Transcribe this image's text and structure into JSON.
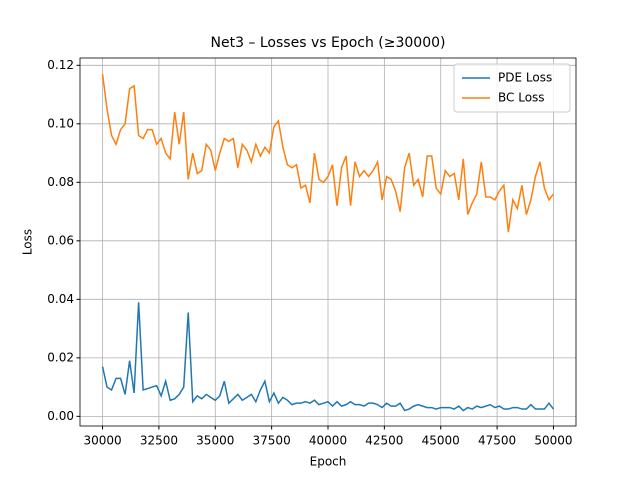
{
  "chart_data": {
    "type": "line",
    "title": "Net3 – Losses vs Epoch (≥30000)",
    "xlabel": "Epoch",
    "ylabel": "Loss",
    "x": [
      30000,
      30200,
      30400,
      30600,
      30800,
      31000,
      31200,
      31400,
      31600,
      31800,
      32000,
      32200,
      32400,
      32600,
      32800,
      33000,
      33200,
      33400,
      33600,
      33800,
      34000,
      34200,
      34400,
      34600,
      34800,
      35000,
      35200,
      35400,
      35600,
      35800,
      36000,
      36200,
      36400,
      36600,
      36800,
      37000,
      37200,
      37400,
      37600,
      37800,
      38000,
      38200,
      38400,
      38600,
      38800,
      39000,
      39200,
      39400,
      39600,
      39800,
      40000,
      40200,
      40400,
      40600,
      40800,
      41000,
      41200,
      41400,
      41600,
      41800,
      42000,
      42200,
      42400,
      42600,
      42800,
      43000,
      43200,
      43400,
      43600,
      43800,
      44000,
      44200,
      44400,
      44600,
      44800,
      45000,
      45200,
      45400,
      45600,
      45800,
      46000,
      46200,
      46400,
      46600,
      46800,
      47000,
      47200,
      47400,
      47600,
      47800,
      48000,
      48200,
      48400,
      48600,
      48800,
      49000,
      49200,
      49400,
      49600,
      49800,
      50000
    ],
    "series": [
      {
        "name": "PDE Loss",
        "color": "#1f77b4",
        "values": [
          0.017,
          0.01,
          0.009,
          0.013,
          0.013,
          0.0075,
          0.019,
          0.008,
          0.039,
          0.009,
          0.0095,
          0.01,
          0.0105,
          0.007,
          0.012,
          0.0055,
          0.006,
          0.0075,
          0.01,
          0.0355,
          0.005,
          0.007,
          0.006,
          0.0075,
          0.0065,
          0.0055,
          0.007,
          0.012,
          0.0045,
          0.006,
          0.0075,
          0.0055,
          0.0065,
          0.0075,
          0.005,
          0.009,
          0.012,
          0.005,
          0.008,
          0.0045,
          0.0065,
          0.0055,
          0.004,
          0.0045,
          0.0045,
          0.005,
          0.0045,
          0.0055,
          0.004,
          0.0045,
          0.005,
          0.0035,
          0.005,
          0.0035,
          0.004,
          0.005,
          0.004,
          0.004,
          0.0035,
          0.0045,
          0.0045,
          0.004,
          0.003,
          0.0045,
          0.0035,
          0.0035,
          0.0045,
          0.002,
          0.0025,
          0.0035,
          0.004,
          0.0035,
          0.003,
          0.003,
          0.0025,
          0.003,
          0.003,
          0.003,
          0.0025,
          0.0035,
          0.002,
          0.003,
          0.0025,
          0.0035,
          0.003,
          0.0035,
          0.004,
          0.003,
          0.0035,
          0.0025,
          0.0025,
          0.003,
          0.003,
          0.0025,
          0.0025,
          0.004,
          0.0025,
          0.0025,
          0.0025,
          0.0045,
          0.0025
        ]
      },
      {
        "name": "BC Loss",
        "color": "#ff7f0e",
        "values": [
          0.117,
          0.105,
          0.096,
          0.093,
          0.098,
          0.1,
          0.112,
          0.113,
          0.096,
          0.095,
          0.098,
          0.098,
          0.093,
          0.095,
          0.09,
          0.088,
          0.104,
          0.093,
          0.104,
          0.081,
          0.09,
          0.083,
          0.084,
          0.093,
          0.091,
          0.084,
          0.09,
          0.095,
          0.094,
          0.095,
          0.085,
          0.093,
          0.091,
          0.087,
          0.093,
          0.089,
          0.092,
          0.09,
          0.099,
          0.101,
          0.092,
          0.086,
          0.085,
          0.086,
          0.078,
          0.079,
          0.073,
          0.09,
          0.081,
          0.08,
          0.082,
          0.086,
          0.072,
          0.085,
          0.089,
          0.072,
          0.087,
          0.082,
          0.084,
          0.082,
          0.084,
          0.087,
          0.074,
          0.082,
          0.081,
          0.077,
          0.07,
          0.085,
          0.09,
          0.079,
          0.081,
          0.075,
          0.089,
          0.089,
          0.078,
          0.076,
          0.084,
          0.082,
          0.083,
          0.074,
          0.088,
          0.069,
          0.073,
          0.076,
          0.087,
          0.075,
          0.075,
          0.074,
          0.077,
          0.079,
          0.063,
          0.074,
          0.071,
          0.079,
          0.069,
          0.074,
          0.082,
          0.087,
          0.078,
          0.074,
          0.076
        ]
      }
    ],
    "xlim": [
      29000,
      51000
    ],
    "xticks": [
      30000,
      32500,
      35000,
      37500,
      40000,
      42500,
      45000,
      47500,
      50000
    ],
    "ylim": [
      -0.0033,
      0.1225
    ],
    "yticks": [
      {
        "value": 0,
        "label": "0.00"
      },
      {
        "value": 0.02,
        "label": "0.02"
      },
      {
        "value": 0.04,
        "label": "0.04"
      },
      {
        "value": 0.06,
        "label": "0.06"
      },
      {
        "value": 0.08,
        "label": "0.08"
      },
      {
        "value": 0.1,
        "label": "0.10"
      },
      {
        "value": 0.12,
        "label": "0.12"
      }
    ],
    "grid": true,
    "legend": "upper right"
  }
}
